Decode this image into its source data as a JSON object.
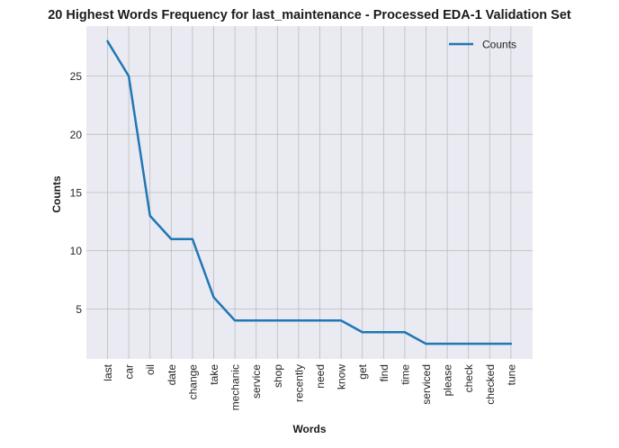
{
  "chart_data": {
    "type": "line",
    "title": "20 Highest Words Frequency for last_maintenance - Processed EDA-1 Validation Set",
    "xlabel": "Words",
    "ylabel": "Counts",
    "categories": [
      "last",
      "car",
      "oil",
      "date",
      "change",
      "take",
      "mechanic",
      "service",
      "shop",
      "recently",
      "need",
      "know",
      "get",
      "find",
      "time",
      "serviced",
      "please",
      "check",
      "checked",
      "tune"
    ],
    "series": [
      {
        "name": "Counts",
        "values": [
          28,
          25,
          13,
          11,
          11,
          6,
          4,
          4,
          4,
          4,
          4,
          4,
          3,
          3,
          3,
          2,
          2,
          2,
          2,
          2
        ],
        "color": "#1f77b4"
      }
    ],
    "yticks": [
      5,
      10,
      15,
      20,
      25
    ],
    "ylim": [
      0.7,
      29.3
    ],
    "grid": true,
    "legend_position": "top-right",
    "background_color": "#eaeaf2",
    "grid_color": "#bcbcbc"
  }
}
